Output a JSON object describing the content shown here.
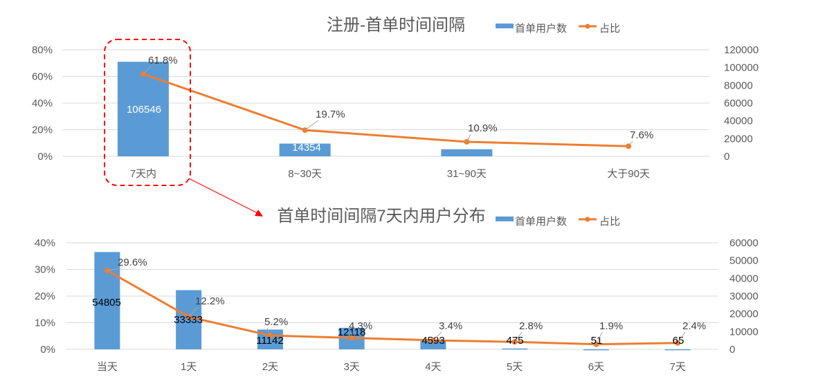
{
  "colors": {
    "bar": "#5b9bd5",
    "line": "#ed7d31",
    "grid": "#d9d9d9",
    "annotation": "#ff0000",
    "leader": "#a6a6a6"
  },
  "legend": {
    "bar_label": "首单用户数",
    "line_label": "占比"
  },
  "chart_data": [
    {
      "type": "bar+line",
      "title": "注册-首单时间间隔",
      "categories": [
        "7天内",
        "8~30天",
        "31~90天",
        "大于90天"
      ],
      "series": [
        {
          "name": "首单用户数",
          "type": "bar",
          "axis": "right",
          "values": [
            106546,
            14354,
            8000,
            0
          ],
          "labels": [
            "106546",
            "14354",
            "",
            ""
          ]
        },
        {
          "name": "占比",
          "type": "line",
          "axis": "left",
          "values": [
            61.8,
            19.7,
            10.9,
            7.6
          ],
          "labels": [
            "61.8%",
            "19.7%",
            "10.9%",
            "7.6%"
          ]
        }
      ],
      "left_axis": {
        "ticks": [
          "0%",
          "20%",
          "40%",
          "60%",
          "80%"
        ],
        "range": [
          0,
          80
        ]
      },
      "right_axis": {
        "ticks": [
          "0",
          "20000",
          "40000",
          "60000",
          "80000",
          "100000",
          "120000"
        ],
        "range": [
          0,
          120000
        ]
      },
      "grid": true,
      "legend_position": "top-right",
      "annotation": "dashed red rounded box around 7天内 with arrow to lower chart"
    },
    {
      "type": "bar+line",
      "title": "首单时间间隔7天内用户分布",
      "categories": [
        "当天",
        "1天",
        "2天",
        "3天",
        "4天",
        "5天",
        "6天",
        "7天"
      ],
      "series": [
        {
          "name": "首单用户数",
          "type": "bar",
          "axis": "right",
          "values": [
            54805,
            33333,
            11142,
            12118,
            4593,
            475,
            51,
            65
          ],
          "labels": [
            "54805",
            "33333",
            "11142",
            "12118",
            "4593",
            "475",
            "51",
            "65"
          ]
        },
        {
          "name": "占比",
          "type": "line",
          "axis": "left",
          "values": [
            29.6,
            12.2,
            5.2,
            4.3,
            3.4,
            2.8,
            1.9,
            2.4
          ],
          "labels": [
            "29.6%",
            "12.2%",
            "5.2%",
            "4.3%",
            "3.4%",
            "2.8%",
            "1.9%",
            "2.4%"
          ]
        }
      ],
      "left_axis": {
        "ticks": [
          "0%",
          "10%",
          "20%",
          "30%",
          "40%"
        ],
        "range": [
          0,
          40
        ]
      },
      "right_axis": {
        "ticks": [
          "0",
          "10000",
          "20000",
          "30000",
          "40000",
          "50000",
          "60000"
        ],
        "range": [
          0,
          60000
        ]
      },
      "grid": true,
      "legend_position": "top-right"
    }
  ]
}
